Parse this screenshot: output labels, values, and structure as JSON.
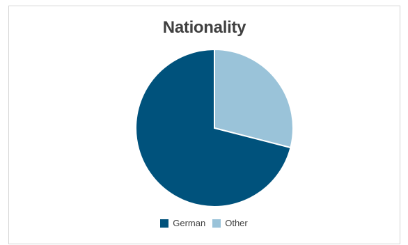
{
  "chart_data": {
    "type": "pie",
    "title": "Nationality",
    "categories": [
      "German",
      "Other"
    ],
    "values": [
      71,
      29
    ],
    "colors": [
      "#00527c",
      "#9ac3d9"
    ],
    "legend_position": "bottom"
  }
}
